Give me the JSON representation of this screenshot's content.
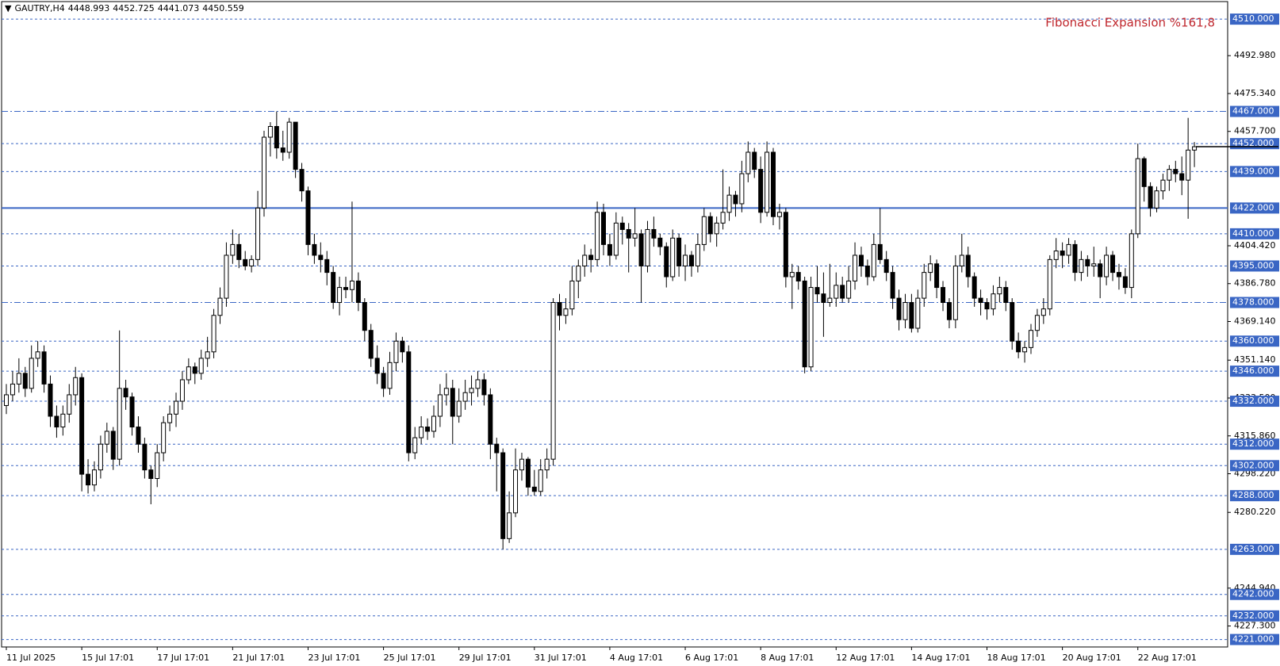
{
  "chart_data": {
    "type": "candlestick",
    "header": {
      "symbol": "GAUTRY,H4",
      "ohlc": [
        4448.993,
        4452.725,
        4441.073,
        4450.559
      ]
    },
    "annotation": {
      "text": "Fibonacci Expansion %161,8",
      "color": "#c0272d"
    },
    "up_color": "#ffffff",
    "down_color": "#000000",
    "level_color": "#3a66c4",
    "ylim": [
      4219,
      4513
    ],
    "yticks": [
      {
        "value": 4492.98,
        "label": "4492.980"
      },
      {
        "value": 4475.34,
        "label": "4475.340"
      },
      {
        "value": 4457.7,
        "label": "4457.700"
      },
      {
        "value": 4404.42,
        "label": "4404.420"
      },
      {
        "value": 4386.78,
        "label": "4386.780"
      },
      {
        "value": 4369.14,
        "label": "4369.140"
      },
      {
        "value": 4351.14,
        "label": "4351.140"
      },
      {
        "value": 4333.5,
        "label": "4333.500"
      },
      {
        "value": 4315.86,
        "label": "4315.860"
      },
      {
        "value": 4298.22,
        "label": "4298.220"
      },
      {
        "value": 4280.22,
        "label": "4280.220"
      },
      {
        "value": 4244.94,
        "label": "4244.940"
      },
      {
        "value": 4227.3,
        "label": "4227.300"
      }
    ],
    "levels": [
      {
        "value": 4510,
        "label": "4510.000",
        "style": "dashed"
      },
      {
        "value": 4467,
        "label": "4467.000",
        "style": "dashdot"
      },
      {
        "value": 4452,
        "label": "4452.000",
        "style": "dashed"
      },
      {
        "value": 4439,
        "label": "4439.000",
        "style": "dashed"
      },
      {
        "value": 4422,
        "label": "4422.000",
        "style": "solid"
      },
      {
        "value": 4410,
        "label": "4410.000",
        "style": "dashed"
      },
      {
        "value": 4395,
        "label": "4395.000",
        "style": "dashed"
      },
      {
        "value": 4378,
        "label": "4378.000",
        "style": "dashdot"
      },
      {
        "value": 4360,
        "label": "4360.000",
        "style": "dashed"
      },
      {
        "value": 4346,
        "label": "4346.000",
        "style": "dashed"
      },
      {
        "value": 4332,
        "label": "4332.000",
        "style": "dashed"
      },
      {
        "value": 4312,
        "label": "4312.000",
        "style": "dashed"
      },
      {
        "value": 4302,
        "label": "4302.000",
        "style": "dashed"
      },
      {
        "value": 4288,
        "label": "4288.000",
        "style": "dashed"
      },
      {
        "value": 4263,
        "label": "4263.000",
        "style": "dashed"
      },
      {
        "value": 4242,
        "label": "4242.000",
        "style": "dashed"
      },
      {
        "value": 4232,
        "label": "4232.000",
        "style": "dashed"
      },
      {
        "value": 4221,
        "label": "4221.000",
        "style": "dashed"
      }
    ],
    "xlabels": [
      "11 Jul 2025",
      "15 Jul 17:01",
      "17 Jul 17:01",
      "21 Jul 17:01",
      "23 Jul 17:01",
      "25 Jul 17:01",
      "29 Jul 17:01",
      "31 Jul 17:01",
      "4 Aug 17:01",
      "6 Aug 17:01",
      "8 Aug 17:01",
      "12 Aug 17:01",
      "14 Aug 17:01",
      "18 Aug 17:01",
      "20 Aug 17:01",
      "22 Aug 17:01"
    ],
    "candles": [
      [
        4330,
        4340,
        4326,
        4335
      ],
      [
        4335,
        4346,
        4332,
        4340
      ],
      [
        4340,
        4352,
        4336,
        4345
      ],
      [
        4345,
        4348,
        4334,
        4338
      ],
      [
        4338,
        4358,
        4336,
        4352
      ],
      [
        4352,
        4360,
        4348,
        4355
      ],
      [
        4355,
        4358,
        4336,
        4340
      ],
      [
        4340,
        4344,
        4320,
        4325
      ],
      [
        4325,
        4330,
        4315,
        4320
      ],
      [
        4320,
        4330,
        4316,
        4326
      ],
      [
        4326,
        4340,
        4322,
        4335
      ],
      [
        4335,
        4348,
        4330,
        4343
      ],
      [
        4343,
        4345,
        4290,
        4298
      ],
      [
        4298,
        4305,
        4289,
        4293
      ],
      [
        4293,
        4304,
        4290,
        4300
      ],
      [
        4300,
        4316,
        4296,
        4312
      ],
      [
        4312,
        4322,
        4308,
        4318
      ],
      [
        4318,
        4320,
        4300,
        4305
      ],
      [
        4305,
        4365,
        4302,
        4338
      ],
      [
        4338,
        4342,
        4328,
        4334
      ],
      [
        4334,
        4336,
        4316,
        4320
      ],
      [
        4320,
        4325,
        4308,
        4312
      ],
      [
        4312,
        4315,
        4296,
        4300
      ],
      [
        4300,
        4302,
        4284,
        4296
      ],
      [
        4296,
        4312,
        4292,
        4308
      ],
      [
        4308,
        4325,
        4304,
        4322
      ],
      [
        4322,
        4330,
        4318,
        4326
      ],
      [
        4326,
        4336,
        4320,
        4332
      ],
      [
        4332,
        4346,
        4328,
        4342
      ],
      [
        4342,
        4352,
        4340,
        4348
      ],
      [
        4348,
        4350,
        4340,
        4345
      ],
      [
        4345,
        4356,
        4342,
        4352
      ],
      [
        4352,
        4362,
        4348,
        4355
      ],
      [
        4355,
        4375,
        4352,
        4372
      ],
      [
        4372,
        4385,
        4368,
        4380
      ],
      [
        4380,
        4406,
        4376,
        4400
      ],
      [
        4400,
        4412,
        4396,
        4405
      ],
      [
        4405,
        4410,
        4394,
        4398
      ],
      [
        4398,
        4402,
        4393,
        4395
      ],
      [
        4395,
        4400,
        4392,
        4398
      ],
      [
        4398,
        4430,
        4395,
        4422
      ],
      [
        4422,
        4458,
        4418,
        4455
      ],
      [
        4455,
        4462,
        4446,
        4460
      ],
      [
        4460,
        4467,
        4445,
        4450
      ],
      [
        4450,
        4458,
        4444,
        4448
      ],
      [
        4448,
        4464,
        4445,
        4462
      ],
      [
        4462,
        4462,
        4436,
        4440
      ],
      [
        4440,
        4443,
        4425,
        4430
      ],
      [
        4430,
        4432,
        4400,
        4405
      ],
      [
        4405,
        4410,
        4396,
        4400
      ],
      [
        4400,
        4406,
        4392,
        4398
      ],
      [
        4398,
        4402,
        4386,
        4392
      ],
      [
        4392,
        4395,
        4375,
        4378
      ],
      [
        4378,
        4390,
        4372,
        4385
      ],
      [
        4385,
        4390,
        4380,
        4384
      ],
      [
        4384,
        4425,
        4378,
        4388
      ],
      [
        4388,
        4392,
        4374,
        4378
      ],
      [
        4378,
        4380,
        4360,
        4365
      ],
      [
        4365,
        4368,
        4348,
        4352
      ],
      [
        4352,
        4358,
        4340,
        4345
      ],
      [
        4345,
        4348,
        4334,
        4338
      ],
      [
        4338,
        4355,
        4335,
        4350
      ],
      [
        4350,
        4364,
        4346,
        4360
      ],
      [
        4360,
        4362,
        4350,
        4355
      ],
      [
        4355,
        4358,
        4304,
        4308
      ],
      [
        4308,
        4320,
        4305,
        4315
      ],
      [
        4315,
        4325,
        4312,
        4320
      ],
      [
        4320,
        4324,
        4314,
        4318
      ],
      [
        4318,
        4330,
        4315,
        4325
      ],
      [
        4325,
        4340,
        4320,
        4335
      ],
      [
        4335,
        4345,
        4330,
        4338
      ],
      [
        4338,
        4342,
        4312,
        4325
      ],
      [
        4325,
        4338,
        4322,
        4332
      ],
      [
        4332,
        4342,
        4328,
        4336
      ],
      [
        4336,
        4344,
        4330,
        4338
      ],
      [
        4338,
        4346,
        4334,
        4342
      ],
      [
        4342,
        4345,
        4330,
        4335
      ],
      [
        4335,
        4338,
        4305,
        4312
      ],
      [
        4312,
        4315,
        4290,
        4308
      ],
      [
        4308,
        4310,
        4263,
        4268
      ],
      [
        4268,
        4290,
        4266,
        4280
      ],
      [
        4280,
        4310,
        4278,
        4300
      ],
      [
        4300,
        4308,
        4295,
        4305
      ],
      [
        4305,
        4306,
        4288,
        4292
      ],
      [
        4292,
        4300,
        4288,
        4290
      ],
      [
        4290,
        4305,
        4288,
        4300
      ],
      [
        4300,
        4310,
        4296,
        4305
      ],
      [
        4305,
        4380,
        4302,
        4378
      ],
      [
        4378,
        4382,
        4365,
        4372
      ],
      [
        4372,
        4380,
        4368,
        4375
      ],
      [
        4375,
        4395,
        4372,
        4388
      ],
      [
        4388,
        4398,
        4380,
        4395
      ],
      [
        4395,
        4405,
        4390,
        4400
      ],
      [
        4400,
        4403,
        4392,
        4398
      ],
      [
        4398,
        4425,
        4395,
        4420
      ],
      [
        4420,
        4424,
        4400,
        4405
      ],
      [
        4405,
        4410,
        4395,
        4400
      ],
      [
        4400,
        4420,
        4398,
        4415
      ],
      [
        4415,
        4418,
        4405,
        4412
      ],
      [
        4412,
        4415,
        4392,
        4408
      ],
      [
        4408,
        4422,
        4404,
        4410
      ],
      [
        4410,
        4412,
        4378,
        4395
      ],
      [
        4395,
        4416,
        4392,
        4412
      ],
      [
        4412,
        4418,
        4404,
        4408
      ],
      [
        4408,
        4410,
        4400,
        4404
      ],
      [
        4404,
        4406,
        4385,
        4390
      ],
      [
        4390,
        4412,
        4388,
        4408
      ],
      [
        4408,
        4410,
        4390,
        4395
      ],
      [
        4395,
        4405,
        4388,
        4400
      ],
      [
        4400,
        4402,
        4390,
        4395
      ],
      [
        4395,
        4410,
        4392,
        4405
      ],
      [
        4405,
        4422,
        4402,
        4418
      ],
      [
        4418,
        4420,
        4406,
        4410
      ],
      [
        4410,
        4418,
        4404,
        4415
      ],
      [
        4415,
        4440,
        4412,
        4420
      ],
      [
        4420,
        4432,
        4416,
        4428
      ],
      [
        4428,
        4430,
        4418,
        4424
      ],
      [
        4424,
        4444,
        4420,
        4438
      ],
      [
        4438,
        4453,
        4434,
        4448
      ],
      [
        4448,
        4450,
        4436,
        4440
      ],
      [
        4440,
        4446,
        4415,
        4420
      ],
      [
        4420,
        4453,
        4418,
        4448
      ],
      [
        4448,
        4450,
        4414,
        4418
      ],
      [
        4418,
        4424,
        4412,
        4420
      ],
      [
        4420,
        4422,
        4385,
        4390
      ],
      [
        4390,
        4396,
        4375,
        4392
      ],
      [
        4392,
        4395,
        4384,
        4388
      ],
      [
        4388,
        4390,
        4345,
        4348
      ],
      [
        4348,
        4390,
        4346,
        4385
      ],
      [
        4385,
        4395,
        4378,
        4382
      ],
      [
        4382,
        4392,
        4362,
        4378
      ],
      [
        4378,
        4396,
        4376,
        4380
      ],
      [
        4380,
        4392,
        4376,
        4386
      ],
      [
        4386,
        4390,
        4378,
        4380
      ],
      [
        4380,
        4395,
        4378,
        4388
      ],
      [
        4388,
        4406,
        4384,
        4400
      ],
      [
        4400,
        4404,
        4390,
        4395
      ],
      [
        4395,
        4398,
        4386,
        4390
      ],
      [
        4390,
        4410,
        4388,
        4405
      ],
      [
        4405,
        4422,
        4396,
        4398
      ],
      [
        4398,
        4402,
        4388,
        4392
      ],
      [
        4392,
        4395,
        4375,
        4380
      ],
      [
        4380,
        4384,
        4365,
        4370
      ],
      [
        4370,
        4382,
        4366,
        4378
      ],
      [
        4378,
        4382,
        4364,
        4366
      ],
      [
        4366,
        4384,
        4364,
        4380
      ],
      [
        4380,
        4396,
        4376,
        4392
      ],
      [
        4392,
        4400,
        4388,
        4396
      ],
      [
        4396,
        4398,
        4380,
        4385
      ],
      [
        4385,
        4388,
        4374,
        4378
      ],
      [
        4378,
        4380,
        4366,
        4370
      ],
      [
        4370,
        4400,
        4366,
        4395
      ],
      [
        4395,
        4410,
        4392,
        4400
      ],
      [
        4400,
        4404,
        4385,
        4390
      ],
      [
        4390,
        4392,
        4376,
        4380
      ],
      [
        4380,
        4384,
        4372,
        4378
      ],
      [
        4378,
        4380,
        4370,
        4375
      ],
      [
        4375,
        4386,
        4372,
        4382
      ],
      [
        4382,
        4390,
        4378,
        4385
      ],
      [
        4385,
        4388,
        4374,
        4378
      ],
      [
        4378,
        4380,
        4356,
        4360
      ],
      [
        4360,
        4364,
        4352,
        4355
      ],
      [
        4355,
        4360,
        4350,
        4357
      ],
      [
        4357,
        4368,
        4354,
        4365
      ],
      [
        4365,
        4375,
        4362,
        4372
      ],
      [
        4372,
        4380,
        4368,
        4375
      ],
      [
        4375,
        4400,
        4372,
        4398
      ],
      [
        4398,
        4408,
        4394,
        4402
      ],
      [
        4402,
        4406,
        4394,
        4400
      ],
      [
        4400,
        4408,
        4396,
        4405
      ],
      [
        4405,
        4407,
        4388,
        4392
      ],
      [
        4392,
        4402,
        4388,
        4398
      ],
      [
        4398,
        4400,
        4390,
        4395
      ],
      [
        4395,
        4404,
        4390,
        4396
      ],
      [
        4396,
        4398,
        4380,
        4390
      ],
      [
        4390,
        4404,
        4386,
        4400
      ],
      [
        4400,
        4402,
        4388,
        4392
      ],
      [
        4392,
        4396,
        4384,
        4390
      ],
      [
        4390,
        4394,
        4382,
        4385
      ],
      [
        4385,
        4412,
        4380,
        4410
      ],
      [
        4410,
        4452,
        4408,
        4445
      ],
      [
        4445,
        4446,
        4425,
        4432
      ],
      [
        4432,
        4434,
        4418,
        4422
      ],
      [
        4422,
        4432,
        4420,
        4430
      ],
      [
        4430,
        4438,
        4426,
        4435
      ],
      [
        4435,
        4442,
        4430,
        4440
      ],
      [
        4440,
        4444,
        4434,
        4438
      ],
      [
        4438,
        4446,
        4428,
        4435
      ],
      [
        4435,
        4464,
        4417,
        4449
      ],
      [
        4448.993,
        4452.725,
        4441.073,
        4450.559
      ]
    ]
  }
}
